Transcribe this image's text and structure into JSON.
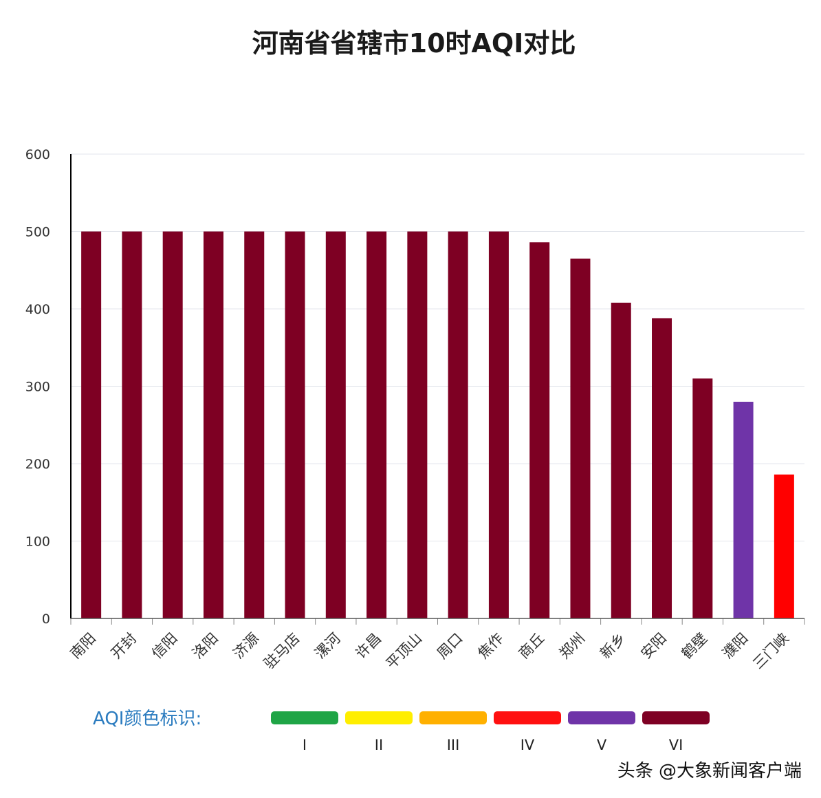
{
  "chart_data": {
    "type": "bar",
    "title": "河南省省辖市10时AQI对比",
    "xlabel": "",
    "ylabel": "",
    "ylim": [
      0,
      600
    ],
    "yticks": [
      0,
      100,
      200,
      300,
      400,
      500,
      600
    ],
    "grid": true,
    "categories": [
      "南阳",
      "开封",
      "信阳",
      "洛阳",
      "济源",
      "驻马店",
      "漯河",
      "许昌",
      "平顶山",
      "周口",
      "焦作",
      "商丘",
      "郑州",
      "新乡",
      "安阳",
      "鹤壁",
      "濮阳",
      "三门峡"
    ],
    "values": [
      500,
      500,
      500,
      500,
      500,
      500,
      500,
      500,
      500,
      500,
      500,
      486,
      465,
      408,
      388,
      310,
      280,
      186
    ],
    "bar_colors": [
      "#7e0023",
      "#7e0023",
      "#7e0023",
      "#7e0023",
      "#7e0023",
      "#7e0023",
      "#7e0023",
      "#7e0023",
      "#7e0023",
      "#7e0023",
      "#7e0023",
      "#7e0023",
      "#7e0023",
      "#7e0023",
      "#7e0023",
      "#7e0023",
      "#6f34a8",
      "#ff0000"
    ]
  },
  "legend": {
    "title": "AQI颜色标识:",
    "items": [
      {
        "label": "I",
        "color": "#1fa546"
      },
      {
        "label": "II",
        "color": "#ffee00"
      },
      {
        "label": "III",
        "color": "#ffb000"
      },
      {
        "label": "IV",
        "color": "#ff1010"
      },
      {
        "label": "V",
        "color": "#6f34a8"
      },
      {
        "label": "VI",
        "color": "#7e0023"
      }
    ]
  },
  "watermark": "头条 @大象新闻客户端"
}
